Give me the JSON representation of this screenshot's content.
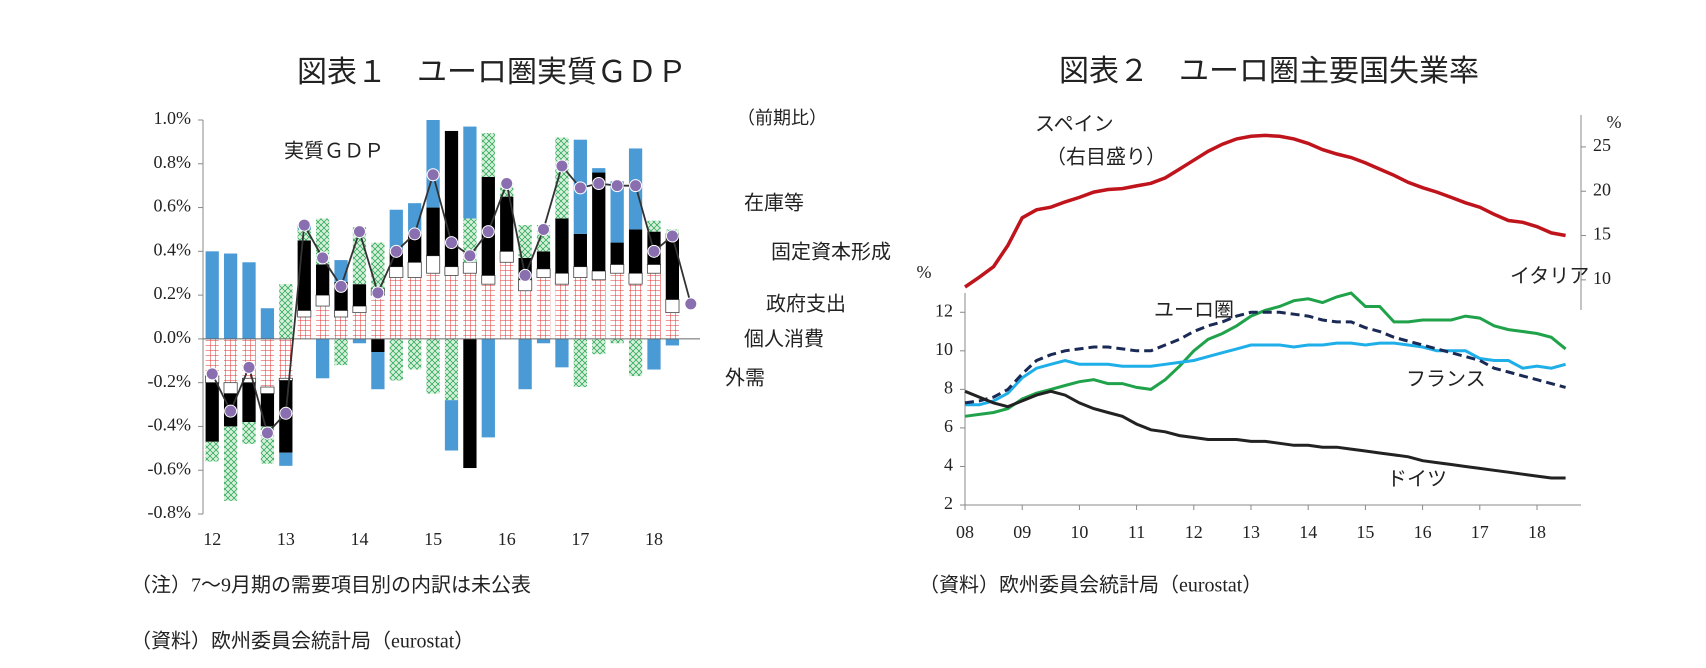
{
  "chart_data": [
    {
      "type": "bar",
      "stacked": true,
      "title": "図表１　ユーロ圏実質ＧＤＰ",
      "unit_note": "（前期比）",
      "categories": [
        "12",
        null,
        null,
        null,
        "13",
        null,
        null,
        null,
        "14",
        null,
        null,
        null,
        "15",
        null,
        null,
        null,
        "16",
        null,
        null,
        null,
        "17",
        null,
        null,
        null,
        "18",
        null,
        null
      ],
      "series": [
        {
          "name": "個人消費",
          "color": "#e03030",
          "hatch": true,
          "values": [
            -0.17,
            -0.2,
            -0.18,
            -0.22,
            -0.18,
            0.1,
            0.15,
            0.1,
            0.12,
            0.2,
            0.28,
            0.28,
            0.3,
            0.29,
            0.3,
            0.25,
            0.35,
            0.22,
            0.28,
            0.25,
            0.28,
            0.27,
            0.3,
            0.25,
            0.3,
            0.12,
            null
          ]
        },
        {
          "name": "政府支出",
          "color": "#ffffff",
          "values": [
            -0.03,
            -0.05,
            -0.02,
            -0.03,
            -0.01,
            0.03,
            0.05,
            0.03,
            0.03,
            0.03,
            0.05,
            0.07,
            0.08,
            0.04,
            0.05,
            0.04,
            0.05,
            0.05,
            0.04,
            0.05,
            0.05,
            0.04,
            0.04,
            0.05,
            0.04,
            0.06,
            null
          ]
        },
        {
          "name": "固定資本形成",
          "color": "#000000",
          "values": [
            -0.27,
            -0.15,
            -0.18,
            -0.15,
            -0.33,
            0.32,
            0.14,
            0.13,
            0.1,
            -0.06,
            0.08,
            0.13,
            0.22,
            0.62,
            -0.59,
            0.45,
            0.25,
            0.1,
            0.08,
            0.25,
            0.15,
            0.45,
            0.1,
            0.2,
            0.15,
            0.3,
            null
          ]
        },
        {
          "name": "在庫等",
          "color": "#1fa24a",
          "hatch": true,
          "values": [
            -0.09,
            -0.34,
            -0.1,
            -0.17,
            0.25,
            0.05,
            0.21,
            -0.12,
            0.26,
            0.21,
            -0.19,
            -0.14,
            -0.25,
            -0.28,
            0.2,
            0.2,
            0.06,
            0.15,
            0.12,
            0.37,
            -0.22,
            -0.07,
            -0.02,
            -0.17,
            0.05,
            0.02,
            null
          ]
        },
        {
          "name": "外需",
          "color": "#4a9ad6",
          "values": [
            0.4,
            0.39,
            0.35,
            0.14,
            -0.06,
            0.02,
            -0.18,
            0.1,
            -0.02,
            -0.17,
            0.18,
            0.14,
            0.4,
            -0.23,
            0.42,
            -0.45,
            0.0,
            -0.23,
            -0.02,
            -0.13,
            0.43,
            0.02,
            0.28,
            0.37,
            -0.14,
            -0.03,
            null
          ]
        },
        {
          "name": "実質ＧＤＰ",
          "type": "line",
          "color": "#8a6fb0",
          "values": [
            -0.16,
            -0.33,
            -0.13,
            -0.43,
            -0.34,
            0.52,
            0.37,
            0.24,
            0.49,
            0.21,
            0.4,
            0.48,
            0.75,
            0.44,
            0.38,
            0.49,
            0.71,
            0.29,
            0.5,
            0.79,
            0.69,
            0.71,
            0.7,
            0.7,
            0.4,
            0.47,
            0.16
          ]
        }
      ],
      "ylim": [
        -0.8,
        1.0
      ],
      "yticks": [
        {
          "value": -0.8,
          "label": "-0.8%"
        },
        {
          "value": -0.6,
          "label": "-0.6%"
        },
        {
          "value": -0.4,
          "label": "-0.4%"
        },
        {
          "value": -0.2,
          "label": "-0.2%"
        },
        {
          "value": 0,
          "label": "0.0%"
        },
        {
          "value": 0.2,
          "label": "0.2%"
        },
        {
          "value": 0.4,
          "label": "0.4%"
        },
        {
          "value": 0.6,
          "label": "0.6%"
        },
        {
          "value": 0.8,
          "label": "0.8%"
        },
        {
          "value": 1.0,
          "label": "1.0%"
        }
      ],
      "grid": false,
      "notes": [
        "（注）7～9月期の需要項目別の内訳は未公表",
        "（資料）欧州委員会統計局（eurostat）"
      ]
    },
    {
      "type": "line",
      "title": "図表２　ユーロ圏主要国失業率",
      "y_label": "%",
      "y2_label": "%",
      "categories": [
        "08",
        null,
        null,
        null,
        "09",
        null,
        null,
        null,
        "10",
        null,
        null,
        null,
        "11",
        null,
        null,
        null,
        "12",
        null,
        null,
        null,
        "13",
        null,
        null,
        null,
        "14",
        null,
        null,
        null,
        "15",
        null,
        null,
        null,
        "16",
        null,
        null,
        null,
        "17",
        null,
        null,
        null,
        "18",
        null,
        null
      ],
      "series": [
        {
          "name": "スペイン",
          "note": "（右目盛り）",
          "axis": "y2",
          "color": "#c0141c",
          "values": [
            9.2,
            10.3,
            11.5,
            13.9,
            17.0,
            17.9,
            18.2,
            18.8,
            19.3,
            19.9,
            20.2,
            20.3,
            20.6,
            20.9,
            21.5,
            22.5,
            23.5,
            24.5,
            25.3,
            25.9,
            26.2,
            26.3,
            26.2,
            25.9,
            25.4,
            24.7,
            24.2,
            23.8,
            23.2,
            22.5,
            21.8,
            21.0,
            20.4,
            19.9,
            19.3,
            18.7,
            18.2,
            17.4,
            16.7,
            16.5,
            16.0,
            15.3,
            15.0
          ]
        },
        {
          "name": "イタリア",
          "color": "#1fa24a",
          "values": [
            6.6,
            6.7,
            6.8,
            7.0,
            7.5,
            7.8,
            8.0,
            8.2,
            8.4,
            8.5,
            8.3,
            8.3,
            8.1,
            8.0,
            8.5,
            9.2,
            10.0,
            10.6,
            10.9,
            11.3,
            11.8,
            12.1,
            12.3,
            12.6,
            12.7,
            12.5,
            12.8,
            13.0,
            12.3,
            12.3,
            11.5,
            11.5,
            11.6,
            11.6,
            11.6,
            11.8,
            11.7,
            11.3,
            11.1,
            11.0,
            10.9,
            10.7,
            10.1
          ]
        },
        {
          "name": "フランス",
          "color": "#1eaee8",
          "values": [
            7.2,
            7.2,
            7.4,
            7.8,
            8.6,
            9.1,
            9.3,
            9.5,
            9.3,
            9.3,
            9.3,
            9.2,
            9.2,
            9.2,
            9.3,
            9.4,
            9.5,
            9.7,
            9.9,
            10.1,
            10.3,
            10.3,
            10.3,
            10.2,
            10.3,
            10.3,
            10.4,
            10.4,
            10.3,
            10.4,
            10.4,
            10.3,
            10.2,
            10.0,
            10.0,
            10.0,
            9.6,
            9.5,
            9.5,
            9.1,
            9.2,
            9.1,
            9.3
          ]
        },
        {
          "name": "ユーロ圏",
          "color": "#1a2a55",
          "dash": true,
          "values": [
            7.3,
            7.4,
            7.6,
            8.0,
            8.8,
            9.5,
            9.8,
            10.0,
            10.1,
            10.2,
            10.2,
            10.1,
            10.0,
            10.0,
            10.3,
            10.6,
            11.0,
            11.3,
            11.5,
            11.8,
            12.0,
            12.0,
            12.0,
            11.9,
            11.8,
            11.6,
            11.5,
            11.5,
            11.2,
            11.0,
            10.7,
            10.5,
            10.3,
            10.1,
            9.9,
            9.7,
            9.5,
            9.1,
            8.9,
            8.7,
            8.5,
            8.3,
            8.1
          ]
        },
        {
          "name": "ドイツ",
          "color": "#222222",
          "values": [
            7.9,
            7.6,
            7.3,
            7.1,
            7.4,
            7.7,
            7.9,
            7.7,
            7.3,
            7.0,
            6.8,
            6.6,
            6.2,
            5.9,
            5.8,
            5.6,
            5.5,
            5.4,
            5.4,
            5.4,
            5.3,
            5.3,
            5.2,
            5.1,
            5.1,
            5.0,
            5.0,
            4.9,
            4.8,
            4.7,
            4.6,
            4.5,
            4.3,
            4.2,
            4.1,
            4.0,
            3.9,
            3.8,
            3.7,
            3.6,
            3.5,
            3.4,
            3.4
          ]
        }
      ],
      "ylim": [
        2,
        13
      ],
      "yticks": [
        2,
        4,
        6,
        8,
        10,
        12
      ],
      "y2lim": [
        6.6,
        28.6
      ],
      "y2ticks": [
        10,
        15,
        20,
        25
      ],
      "grid": false,
      "notes": [
        "（資料）欧州委員会統計局（eurostat）"
      ]
    }
  ]
}
